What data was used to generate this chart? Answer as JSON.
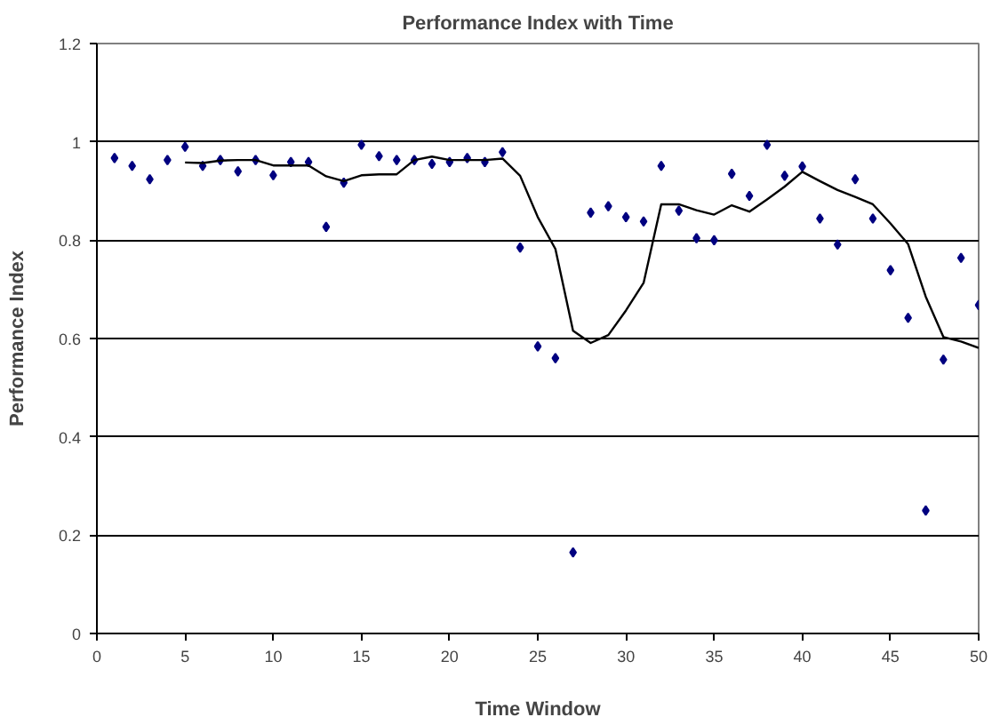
{
  "chart_data": {
    "type": "scatter",
    "title": "Performance Index with Time",
    "xlabel": "Time Window",
    "ylabel": "Performance Index",
    "xlim": [
      0,
      50
    ],
    "xticks": [
      0,
      5,
      10,
      15,
      20,
      25,
      30,
      35,
      40,
      45,
      50
    ],
    "ylim": [
      0,
      1.2
    ],
    "yticks": [
      0,
      0.2,
      0.4,
      0.6,
      0.8,
      1,
      1.2
    ],
    "grid": "y",
    "series": [
      {
        "color": "#000080",
        "marker": "diamond",
        "x": [
          1,
          2,
          3,
          4,
          5,
          6,
          7,
          8,
          9,
          10,
          11,
          12,
          13,
          14,
          15,
          16,
          17,
          18,
          19,
          20,
          21,
          22,
          23,
          24,
          25,
          26,
          27,
          28,
          29,
          30,
          31,
          32,
          33,
          34,
          35,
          36,
          37,
          38,
          39,
          40,
          41,
          42,
          43,
          44,
          45,
          46,
          47,
          48,
          49,
          50
        ],
        "values": [
          0.967,
          0.951,
          0.924,
          0.963,
          0.99,
          0.951,
          0.963,
          0.94,
          0.963,
          0.932,
          0.959,
          0.959,
          0.827,
          0.917,
          0.994,
          0.971,
          0.963,
          0.963,
          0.955,
          0.959,
          0.967,
          0.959,
          0.979,
          0.785,
          0.584,
          0.56,
          0.165,
          0.856,
          0.869,
          0.847,
          0.838,
          0.951,
          0.86,
          0.804,
          0.8,
          0.935,
          0.89,
          0.994,
          0.931,
          0.95,
          0.844,
          0.791,
          0.924,
          0.844,
          0.739,
          0.642,
          0.25,
          0.557,
          0.764,
          0.668
        ]
      },
      {
        "type": "line",
        "color": "#000000",
        "marker": "none",
        "line_style": "solid",
        "x": [
          5,
          6,
          7,
          8,
          9,
          10,
          11,
          12,
          13,
          14,
          15,
          16,
          17,
          18,
          19,
          20,
          21,
          22,
          23,
          24,
          25,
          26,
          27,
          28,
          29,
          30,
          31,
          32,
          33,
          34,
          35,
          36,
          37,
          38,
          39,
          40,
          41,
          42,
          43,
          44,
          45,
          46,
          47,
          48,
          49,
          50
        ],
        "values": [
          0.958,
          0.957,
          0.962,
          0.963,
          0.963,
          0.952,
          0.952,
          0.952,
          0.93,
          0.92,
          0.932,
          0.934,
          0.934,
          0.963,
          0.97,
          0.963,
          0.963,
          0.963,
          0.966,
          0.931,
          0.847,
          0.782,
          0.616,
          0.591,
          0.607,
          0.657,
          0.713,
          0.873,
          0.873,
          0.861,
          0.852,
          0.871,
          0.858,
          0.883,
          0.909,
          0.939,
          0.92,
          0.902,
          0.888,
          0.873,
          0.834,
          0.792,
          0.685,
          0.603,
          0.594,
          0.581
        ]
      }
    ]
  }
}
